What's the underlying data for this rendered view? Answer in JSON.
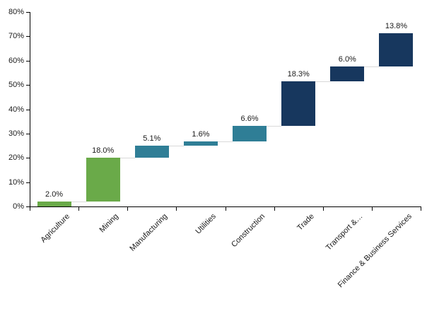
{
  "chart_data": {
    "type": "bar",
    "subtype": "waterfall",
    "title": "",
    "xlabel": "",
    "ylabel": "",
    "categories": [
      "Agriculture",
      "Mining",
      "Manufacturing",
      "Utilities",
      "Construction",
      "Trade",
      "Transport &…",
      "Finance & Business Services"
    ],
    "values": [
      2.0,
      18.0,
      5.1,
      1.6,
      6.6,
      18.3,
      6.0,
      13.8
    ],
    "data_labels": [
      "2.0%",
      "18.0%",
      "5.1%",
      "1.6%",
      "6.6%",
      "18.3%",
      "6.0%",
      "13.8%"
    ],
    "cumulative_start": [
      0.0,
      2.0,
      20.0,
      25.1,
      26.7,
      33.3,
      51.6,
      57.6
    ],
    "cumulative_end": [
      2.0,
      20.0,
      25.1,
      26.7,
      33.3,
      51.6,
      57.6,
      71.4
    ],
    "bar_colors": [
      "#6aaa49",
      "#6aaa49",
      "#2f7e96",
      "#2f7e96",
      "#2f7e96",
      "#17375e",
      "#17375e",
      "#17375e"
    ],
    "ylim": [
      0,
      80
    ],
    "ytick_step": 10,
    "ytick_labels": [
      "0%",
      "10%",
      "20%",
      "30%",
      "40%",
      "50%",
      "60%",
      "70%",
      "80%"
    ],
    "grid": false,
    "legend": false,
    "connector_color": "#d9d9d9",
    "axis_color": "#000000",
    "text_color": "#1a1a1a"
  }
}
